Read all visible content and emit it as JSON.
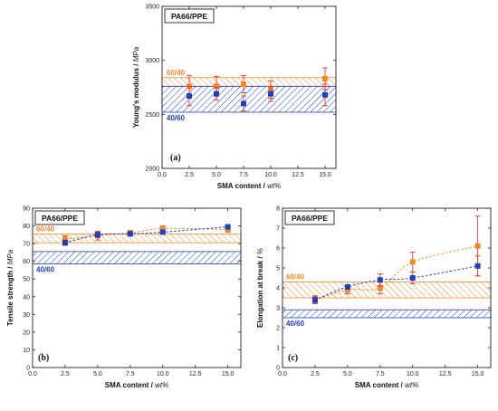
{
  "chart_data": [
    {
      "type": "scatter",
      "panel_letter": "(a)",
      "title": "PA66/PPE",
      "xlabel": "SMA content",
      "xlabel_unit": "wt%",
      "ylabel": "Young's modulus",
      "ylabel_unit": "MPa",
      "xlim": [
        0,
        16
      ],
      "xticks": [
        "0.0",
        "2.5",
        "5.0",
        "7.5",
        "10.0",
        "12.5",
        "15.0"
      ],
      "ylim": [
        2000,
        3500
      ],
      "yticks": [
        "2000",
        "2500",
        "3000",
        "3500"
      ],
      "bands": [
        {
          "label": "60/40",
          "range": [
            2760,
            2840
          ],
          "color": "#f08a24"
        },
        {
          "label": "40/60",
          "range": [
            2520,
            2760
          ],
          "color": "#1f3fbf"
        }
      ],
      "series": [
        {
          "color": "#f08a24",
          "marker": "circle",
          "connected": false,
          "x": [
            2.5,
            5.0,
            7.5,
            10.0,
            15.0
          ],
          "y": [
            2760,
            2760,
            2780,
            2730,
            2830
          ],
          "err": [
            100,
            90,
            80,
            80,
            100
          ]
        },
        {
          "color": "#1f3fbf",
          "marker": "square",
          "connected": false,
          "x": [
            2.5,
            5.0,
            7.5,
            10.0,
            15.0
          ],
          "y": [
            2670,
            2690,
            2600,
            2690,
            2680
          ],
          "err": [
            90,
            60,
            70,
            70,
            100
          ]
        }
      ]
    },
    {
      "type": "line",
      "panel_letter": "(b)",
      "title": "PA66/PPE",
      "xlabel": "SMA content",
      "xlabel_unit": "wt%",
      "ylabel": "Tensile strength",
      "ylabel_unit": "MPa",
      "xlim": [
        0,
        16
      ],
      "xticks": [
        "0.0",
        "2.5",
        "5.0",
        "7.5",
        "10.0",
        "12.5",
        "15.0"
      ],
      "ylim": [
        0,
        90
      ],
      "yticks": [
        "0",
        "10",
        "20",
        "30",
        "40",
        "50",
        "60",
        "70",
        "80",
        "90"
      ],
      "bands": [
        {
          "label": "60/40",
          "range": [
            70.5,
            75.5
          ],
          "color": "#f08a24"
        },
        {
          "label": "40/60",
          "range": [
            58.5,
            65.5
          ],
          "color": "#1f3fbf"
        }
      ],
      "series": [
        {
          "color": "#f08a24",
          "marker": "circle",
          "connected": true,
          "x": [
            2.5,
            5.0,
            7.5,
            10.0,
            15.0
          ],
          "y": [
            72.5,
            74.5,
            76.0,
            78.5,
            78.0
          ],
          "err": [
            2.0,
            2.5,
            1.5,
            1.5,
            1.5
          ]
        },
        {
          "color": "#1f3fbf",
          "marker": "square",
          "connected": true,
          "x": [
            2.5,
            5.0,
            7.5,
            10.0,
            15.0
          ],
          "y": [
            70.5,
            75.0,
            75.5,
            76.5,
            79.5
          ],
          "err": [
            1.5,
            1.5,
            1.0,
            1.0,
            1.0
          ]
        }
      ]
    },
    {
      "type": "line",
      "panel_letter": "(c)",
      "title": "PA66/PPE",
      "xlabel": "SMA content",
      "xlabel_unit": "wt%",
      "ylabel": "Elongation at break",
      "ylabel_unit": "%",
      "xlim": [
        0,
        16
      ],
      "xticks": [
        "0.0",
        "2.5",
        "5.0",
        "7.5",
        "10.0",
        "12.5",
        "15.0"
      ],
      "ylim": [
        0,
        8
      ],
      "yticks": [
        "0",
        "1",
        "2",
        "3",
        "4",
        "5",
        "6",
        "7",
        "8"
      ],
      "bands": [
        {
          "label": "60/40",
          "range": [
            3.5,
            4.3
          ],
          "color": "#f08a24"
        },
        {
          "label": "40/60",
          "range": [
            2.5,
            2.9
          ],
          "color": "#1f3fbf"
        }
      ],
      "series": [
        {
          "color": "#f08a24",
          "marker": "circle",
          "connected": true,
          "x": [
            2.5,
            5.0,
            7.5,
            10.0,
            15.0
          ],
          "y": [
            3.4,
            3.9,
            4.0,
            5.3,
            6.1
          ],
          "err": [
            0.2,
            0.2,
            0.3,
            0.5,
            1.5
          ]
        },
        {
          "color": "#1f3fbf",
          "marker": "square",
          "connected": true,
          "x": [
            2.5,
            5.0,
            7.5,
            10.0,
            15.0
          ],
          "y": [
            3.4,
            4.05,
            4.4,
            4.5,
            5.1
          ],
          "err": [
            0.15,
            0.1,
            0.3,
            0.3,
            0.5
          ]
        }
      ]
    }
  ]
}
